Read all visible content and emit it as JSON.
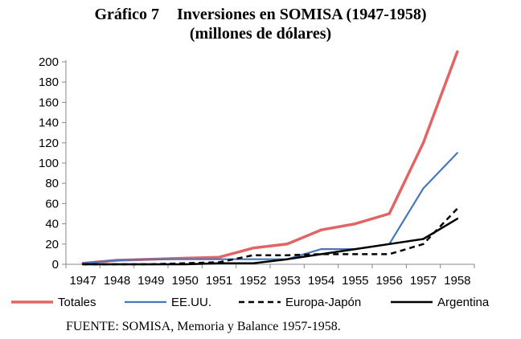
{
  "title_line1_a": "Gráfico 7",
  "title_line1_b": "Inversiones en SOMISA (1947-1958)",
  "title_line2": "(millones  de dólares)",
  "source": "FUENTE: SOMISA,  Memoria y Balance 1957-1958.",
  "chart_data": {
    "type": "line",
    "title": "Inversiones en SOMISA (1947-1958)",
    "subtitle": "(millones  de dólares)",
    "xlabel": "",
    "ylabel": "",
    "ylim": [
      0,
      200
    ],
    "yticks": [
      0,
      20,
      40,
      60,
      80,
      100,
      120,
      140,
      160,
      180,
      200
    ],
    "grid": false,
    "legend_position": "bottom",
    "categories": [
      "1947",
      "1948",
      "1949",
      "1950",
      "1951",
      "1952",
      "1953",
      "1954",
      "1955",
      "1956",
      "1957",
      "1958"
    ],
    "series": [
      {
        "name": "Totales",
        "color": "#e06666",
        "dash": "solid",
        "values": [
          1,
          4,
          5,
          6,
          7,
          16,
          20,
          34,
          40,
          50,
          120,
          210
        ]
      },
      {
        "name": "EE.UU.",
        "color": "#4a76b8",
        "dash": "solid",
        "values": [
          1,
          4,
          5,
          5,
          5,
          5,
          5,
          15,
          15,
          20,
          75,
          110
        ]
      },
      {
        "name": "Europa-Japón",
        "color": "#000000",
        "dash": "dashed",
        "values": [
          0,
          0,
          0,
          1,
          2,
          9,
          9,
          10,
          10,
          10,
          20,
          55
        ]
      },
      {
        "name": "Argentina",
        "color": "#000000",
        "dash": "solid",
        "values": [
          0,
          0,
          0,
          0,
          1,
          1,
          5,
          10,
          15,
          20,
          25,
          45
        ]
      }
    ]
  }
}
